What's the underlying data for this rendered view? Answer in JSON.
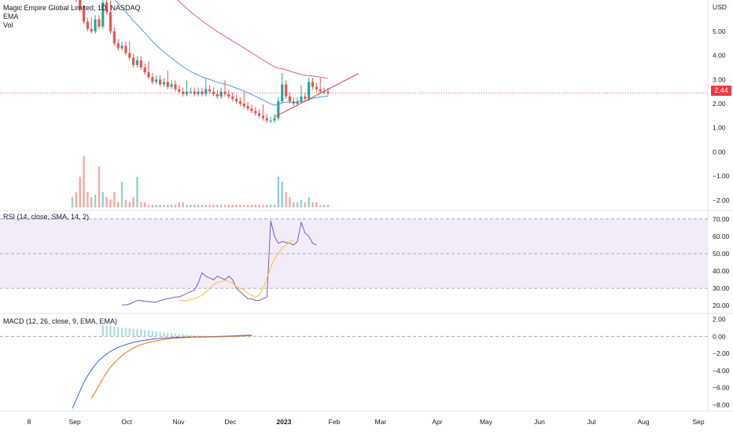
{
  "legend": {
    "symbol_line": "Magic Empire Global Limited, 1D, NASDAQ",
    "ema_label": "EMA",
    "vol_label": "Vol",
    "rsi_label": "RSI (14, close, SMA, 14, 2)",
    "macd_label": "MACD (12, 26, close, 9, EMA, EMA)"
  },
  "last_price": "2.44",
  "colors": {
    "up": "#26a69a",
    "down": "#ef5350",
    "ema_fast": "#4a9be8",
    "ema_slow": "#e9559b",
    "trendline": "#f23645",
    "rsi": "#7e57c2",
    "rsi_ma": "#fbc02d",
    "macd": "#2962ff",
    "signal": "#ff6d00",
    "band": "#ede7f6"
  },
  "chart_data": [
    {
      "type": "candlestick",
      "currency": "USD",
      "price_axis_ticks": [
        "5.00",
        "4.00",
        "3.00",
        "2.00",
        "1.00",
        "0.00",
        "−1.00",
        "−2.00"
      ],
      "ylim": [
        -2.3,
        6.3
      ],
      "x_ticks": [
        "8",
        "Sep",
        "Oct",
        "Nov",
        "Dec",
        "2023",
        "Feb",
        "Mar",
        "Apr",
        "May",
        "Jun",
        "Jul",
        "Aug",
        "Sep"
      ],
      "close": [
        6.6,
        6.3,
        5.9,
        5.4,
        5.1,
        5.0,
        5.5,
        5.2,
        6.2,
        5.8,
        5.0,
        4.5,
        4.3,
        4.4,
        4.1,
        3.9,
        3.6,
        3.8,
        3.5,
        3.3,
        3.1,
        2.9,
        3.0,
        2.8,
        2.9,
        2.7,
        2.8,
        2.6,
        2.5,
        2.4,
        2.5,
        2.5,
        2.4,
        2.5,
        2.4,
        2.6,
        2.5,
        2.4,
        2.3,
        2.5,
        2.4,
        2.3,
        2.2,
        2.1,
        2.0,
        1.9,
        1.8,
        1.7,
        1.6,
        1.5,
        1.4,
        1.3,
        1.3,
        1.4,
        2.1,
        2.8,
        2.3,
        2.1,
        2.0,
        2.1,
        2.3,
        2.2,
        2.9,
        2.7,
        2.6,
        2.5,
        2.5,
        2.44
      ],
      "ema_fast_label": "EMA",
      "ema_slow_label": "EMA",
      "trendline": [
        [
          53,
          1.45
        ],
        [
          75,
          3.25
        ]
      ],
      "volume": [
        0.2,
        0.3,
        0.6,
        1.0,
        0.3,
        0.2,
        0.25,
        0.8,
        0.3,
        0.2,
        0.15,
        0.3,
        0.1,
        0.5,
        0.15,
        0.1,
        0.2,
        0.6,
        0.1,
        0.1,
        0.05,
        0.05,
        0.05,
        0.05,
        0.05,
        0.05,
        0.05,
        0.05,
        0.1,
        0.1,
        0.05,
        0.05,
        0.05,
        0.05,
        0.05,
        0.05,
        0.05,
        0.05,
        0.05,
        0.05,
        0.05,
        0.05,
        0.05,
        0.05,
        0.05,
        0.05,
        0.05,
        0.05,
        0.05,
        0.05,
        0.05,
        0.05,
        0.05,
        0.05,
        0.6,
        0.5,
        0.3,
        0.2,
        0.1,
        0.1,
        0.15,
        0.1,
        0.2,
        0.1,
        0.1,
        0.05,
        0.05,
        0.05
      ]
    },
    {
      "type": "line",
      "title": "RSI (14, close, SMA, 14, 2)",
      "axis_ticks": [
        "70.00",
        "60.00",
        "50.00",
        "40.00",
        "30.00",
        "20.00"
      ],
      "ylim": [
        16,
        74
      ],
      "bands": [
        70,
        50,
        30
      ],
      "rsi_start_index": 13,
      "rsi": [
        20.5,
        20.5,
        21,
        22,
        23,
        23,
        22.5,
        22.5,
        22,
        22,
        23,
        23.5,
        24,
        24.5,
        25,
        25,
        26,
        27,
        28,
        29,
        33,
        39,
        37,
        36,
        35,
        37,
        36,
        35,
        37,
        35,
        30,
        28,
        26,
        24,
        24,
        23,
        23,
        24,
        25,
        69,
        60,
        56,
        57,
        56.5,
        56,
        55,
        57,
        68,
        62,
        60,
        56,
        55
      ],
      "rsi_ma_start_index": 28,
      "rsi_ma": [
        23,
        23,
        23,
        23.5,
        24,
        25,
        26,
        28,
        30,
        32,
        33.5,
        34,
        34.5,
        34,
        33,
        31,
        30,
        29,
        27,
        26,
        25,
        26,
        30,
        36,
        42,
        47,
        50,
        53,
        55,
        57,
        58
      ]
    },
    {
      "type": "line",
      "title": "MACD (12, 26, close, 9, EMA, EMA)",
      "axis_ticks": [
        "2.00",
        "0.00",
        "−2.00",
        "−4.00",
        "−6.00",
        "−8.00"
      ],
      "ylim": [
        -8.6,
        2.6
      ],
      "macd_start_index": 0,
      "macd": [
        -8.4,
        -7.4,
        -6.4,
        -5.4,
        -4.6,
        -3.9,
        -3.3,
        -2.8,
        -2.4,
        -2.05,
        -1.75,
        -1.5,
        -1.28,
        -1.1,
        -0.95,
        -0.82,
        -0.7,
        -0.6,
        -0.52,
        -0.45,
        -0.38,
        -0.32,
        -0.27,
        -0.23,
        -0.2,
        -0.17,
        -0.14,
        -0.12,
        -0.1,
        -0.09,
        -0.08,
        -0.07,
        -0.06,
        -0.05,
        -0.05,
        -0.04,
        -0.03,
        -0.02,
        -0.01,
        0.01,
        0.02,
        0.04,
        0.06,
        0.08,
        0.1,
        0.12,
        0.14,
        0.16
      ],
      "signal_start_index": 5,
      "signal": [
        -7.2,
        -6.5,
        -5.7,
        -4.9,
        -4.2,
        -3.6,
        -3.1,
        -2.65,
        -2.25,
        -1.9,
        -1.6,
        -1.35,
        -1.15,
        -0.97,
        -0.82,
        -0.7,
        -0.6,
        -0.51,
        -0.43,
        -0.36,
        -0.3,
        -0.25,
        -0.21,
        -0.18,
        -0.15,
        -0.13,
        -0.11,
        -0.1,
        -0.09,
        -0.08,
        -0.07,
        -0.06,
        -0.06,
        -0.05,
        -0.04,
        -0.03,
        -0.01,
        0.0,
        0.02,
        0.04,
        0.06,
        0.08,
        0.1
      ],
      "histogram_start_index": 8,
      "histogram": [
        1.3,
        1.25,
        1.2,
        1.15,
        1.1,
        1.05,
        1.0,
        0.95,
        0.9,
        0.85,
        0.8,
        0.75,
        0.7,
        0.65,
        0.6,
        0.55,
        0.5,
        0.45,
        0.4,
        0.35,
        0.3,
        0.25,
        0.2,
        0.18,
        0.15,
        0.12,
        0.1,
        0.08,
        0.06,
        0.05,
        0.04,
        0.03,
        0.02,
        -0.05,
        -0.06,
        -0.04,
        0.12,
        0.15,
        0.12,
        0.1,
        0.08,
        0.06,
        0.04
      ]
    }
  ]
}
